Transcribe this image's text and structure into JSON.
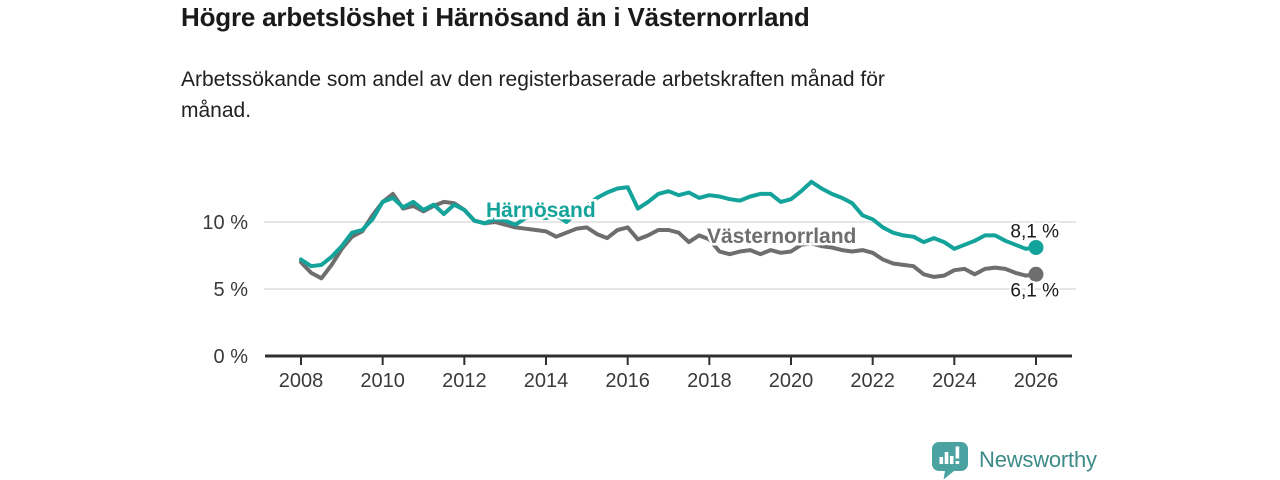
{
  "header": {
    "title": "Högre arbetslöshet i Härnösand än i Västernorrland",
    "subtitle_line1": "Arbetssökande som andel av den registerbaserade arbetskraften månad för",
    "subtitle_line2": "månad."
  },
  "chart_data": {
    "type": "line",
    "title": "Högre arbetslöshet i Härnösand än i Västernorrland",
    "subtitle": "Arbetssökande som andel av den registerbaserade arbetskraften månad för månad.",
    "xlabel": "",
    "ylabel": "",
    "x_unit": "year (monthly series, sampled quarterly)",
    "xlim": [
      2007.1,
      2026.9
    ],
    "ylim": [
      0,
      13.7
    ],
    "grid": "horizontal",
    "legend_position": "inline labels next to lines",
    "x_ticks": [
      2008,
      2010,
      2012,
      2014,
      2016,
      2018,
      2020,
      2022,
      2024,
      2026
    ],
    "y_ticks": [
      0,
      5,
      10
    ],
    "y_tick_labels": [
      "0 %",
      "5 %",
      "10 %"
    ],
    "x": [
      2008,
      2008.25,
      2008.5,
      2008.75,
      2009,
      2009.25,
      2009.5,
      2009.75,
      2010,
      2010.25,
      2010.5,
      2010.75,
      2011,
      2011.25,
      2011.5,
      2011.75,
      2012,
      2012.25,
      2012.5,
      2012.75,
      2013,
      2013.25,
      2013.5,
      2013.75,
      2014,
      2014.25,
      2014.5,
      2014.75,
      2015,
      2015.25,
      2015.5,
      2015.75,
      2016,
      2016.25,
      2016.5,
      2016.75,
      2017,
      2017.25,
      2017.5,
      2017.75,
      2018,
      2018.25,
      2018.5,
      2018.75,
      2019,
      2019.25,
      2019.5,
      2019.75,
      2020,
      2020.25,
      2020.5,
      2020.75,
      2021,
      2021.25,
      2021.5,
      2021.75,
      2022,
      2022.25,
      2022.5,
      2022.75,
      2023,
      2023.25,
      2023.5,
      2023.75,
      2024,
      2024.25,
      2024.5,
      2024.75,
      2025,
      2025.25,
      2025.5,
      2025.75,
      2026
    ],
    "series": [
      {
        "name": "Härnösand",
        "color": "#14a39b",
        "end_label": "8,1 %",
        "end_value": 8.1,
        "values": [
          7.2,
          6.7,
          6.8,
          7.4,
          8.2,
          9.2,
          9.4,
          10.2,
          11.5,
          11.8,
          11.1,
          11.5,
          10.9,
          11.3,
          10.6,
          11.3,
          10.9,
          10.1,
          9.9,
          10.2,
          10.1,
          9.8,
          10.3,
          10.4,
          10.3,
          10.5,
          10.0,
          10.7,
          11.2,
          11.8,
          12.2,
          12.5,
          12.6,
          11.0,
          11.5,
          12.1,
          12.3,
          12.0,
          12.2,
          11.8,
          12.0,
          11.9,
          11.7,
          11.6,
          11.9,
          12.1,
          12.1,
          11.5,
          11.7,
          12.3,
          13.0,
          12.5,
          12.1,
          11.8,
          11.4,
          10.5,
          10.2,
          9.6,
          9.2,
          9.0,
          8.9,
          8.5,
          8.8,
          8.5,
          8.0,
          8.3,
          8.6,
          9.0,
          9.0,
          8.6,
          8.3,
          8.0,
          8.1
        ]
      },
      {
        "name": "Västernorrland",
        "color": "#6e6e6e",
        "end_label": "6,1 %",
        "end_value": 6.1,
        "values": [
          7.0,
          6.2,
          5.8,
          6.8,
          8.0,
          8.9,
          9.3,
          10.5,
          11.5,
          12.1,
          11.0,
          11.2,
          10.8,
          11.2,
          11.5,
          11.4,
          10.9,
          10.1,
          9.9,
          10.0,
          9.8,
          9.6,
          9.5,
          9.4,
          9.3,
          8.9,
          9.2,
          9.5,
          9.6,
          9.1,
          8.8,
          9.4,
          9.6,
          8.7,
          9.0,
          9.4,
          9.4,
          9.2,
          8.5,
          9.0,
          8.7,
          7.8,
          7.6,
          7.8,
          7.9,
          7.6,
          7.9,
          7.7,
          7.8,
          8.3,
          8.4,
          8.2,
          8.1,
          7.9,
          7.8,
          7.9,
          7.7,
          7.2,
          6.9,
          6.8,
          6.7,
          6.1,
          5.9,
          6.0,
          6.4,
          6.5,
          6.1,
          6.5,
          6.6,
          6.5,
          6.2,
          6.0,
          6.1
        ]
      }
    ],
    "colors": {
      "grid_line": "#dedede",
      "axis_line": "#2f2f2f",
      "tick_label": "#3a3a3a",
      "value_label": "#1a1a1a"
    }
  },
  "footer": {
    "brand": "Newsworthy",
    "icon": "bar-chart-speech-bubble-icon",
    "icon_color": "#4aa3a1",
    "text_color": "#3d8a88"
  }
}
